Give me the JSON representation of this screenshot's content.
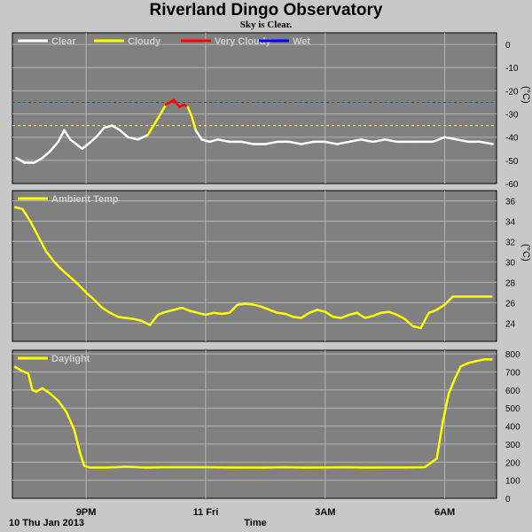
{
  "header": {
    "title": "Riverland Dingo Observatory",
    "subtitle": "Sky is Clear."
  },
  "footer": {
    "date_label": "10 Thu Jan 2013",
    "x_axis_label": "Time"
  },
  "x_ticks": [
    {
      "label": "9PM",
      "hour": 21
    },
    {
      "label": "11 Fri",
      "hour": 24
    },
    {
      "label": "3AM",
      "hour": 27
    },
    {
      "label": "6AM",
      "hour": 30
    }
  ],
  "chart_data": [
    {
      "type": "line",
      "name": "sky-panel",
      "xlabel": "Time",
      "ylabel": "(°C)",
      "xlim": [
        19.15,
        31.3
      ],
      "ylim": [
        -60,
        5
      ],
      "yticks": [
        0,
        -10,
        -20,
        -30,
        -40,
        -50,
        -60
      ],
      "grid": true,
      "legend": "top-left",
      "thresholds": [
        {
          "value": -25,
          "color": "#ff0000"
        },
        {
          "value": -35,
          "color": "#ffff00"
        }
      ],
      "series": [
        {
          "name": "Clear",
          "color": "#ffffff"
        },
        {
          "name": "Cloudy",
          "color": "#ffff00"
        },
        {
          "name": "Very Cloudy",
          "color": "#ff0000"
        },
        {
          "name": "Wet",
          "color": "#0000ff"
        }
      ],
      "x": [
        19.25,
        19.45,
        19.7,
        19.9,
        20.1,
        20.3,
        20.45,
        20.6,
        20.75,
        20.9,
        21.05,
        21.25,
        21.45,
        21.65,
        21.85,
        22.05,
        22.3,
        22.55,
        22.8,
        23.0,
        23.2,
        23.35,
        23.45,
        23.55,
        23.65,
        23.75,
        23.9,
        24.1,
        24.3,
        24.6,
        24.9,
        25.2,
        25.5,
        25.8,
        26.1,
        26.4,
        26.7,
        27.0,
        27.3,
        27.6,
        27.9,
        28.2,
        28.5,
        28.8,
        29.1,
        29.4,
        29.7,
        30.0,
        30.3,
        30.6,
        30.9,
        31.2
      ],
      "values": [
        -49,
        -51,
        -51,
        -49,
        -46,
        -42,
        -37,
        -41,
        -43,
        -45,
        -43,
        -40,
        -36,
        -35,
        -37,
        -40,
        -41,
        -39,
        -32,
        -26,
        -24,
        -27,
        -26,
        -27,
        -31,
        -37,
        -41,
        -42,
        -41,
        -42,
        -42,
        -43,
        -43,
        -42,
        -42,
        -43,
        -42,
        -42,
        -43,
        -42,
        -41,
        -42,
        -41,
        -42,
        -42,
        -42,
        -42,
        -40,
        -41,
        -42,
        -42,
        -43
      ],
      "conditions": [
        "clear",
        "clear",
        "clear",
        "clear",
        "clear",
        "clear",
        "clear",
        "clear",
        "clear",
        "clear",
        "clear",
        "clear",
        "clear",
        "clear",
        "clear",
        "clear",
        "clear",
        "clear",
        "cloudy",
        "cloudy",
        "very-cloudy",
        "very-cloudy",
        "very-cloudy",
        "very-cloudy",
        "cloudy",
        "cloudy",
        "clear",
        "clear",
        "clear",
        "clear",
        "clear",
        "clear",
        "clear",
        "clear",
        "clear",
        "clear",
        "clear",
        "clear",
        "clear",
        "clear",
        "clear",
        "clear",
        "clear",
        "clear",
        "clear",
        "clear",
        "clear",
        "clear",
        "clear",
        "clear",
        "clear",
        "clear"
      ]
    },
    {
      "type": "line",
      "name": "ambient-panel",
      "xlabel": "Time",
      "ylabel": "(°C)",
      "xlim": [
        19.15,
        31.3
      ],
      "ylim": [
        22.2,
        37
      ],
      "yticks": [
        24,
        26,
        28,
        30,
        32,
        34,
        36
      ],
      "grid": true,
      "legend": "top-left",
      "series": [
        {
          "name": "Ambient Temp",
          "color": "#ffff00",
          "x": [
            19.2,
            19.4,
            19.6,
            19.8,
            20.0,
            20.2,
            20.4,
            20.6,
            20.8,
            21.0,
            21.2,
            21.4,
            21.6,
            21.8,
            22.0,
            22.2,
            22.4,
            22.6,
            22.8,
            23.0,
            23.2,
            23.4,
            23.6,
            23.8,
            24.0,
            24.2,
            24.4,
            24.6,
            24.8,
            25.0,
            25.2,
            25.4,
            25.6,
            25.8,
            26.0,
            26.2,
            26.4,
            26.6,
            26.8,
            27.0,
            27.2,
            27.4,
            27.6,
            27.8,
            28.0,
            28.2,
            28.4,
            28.6,
            28.8,
            29.0,
            29.2,
            29.4,
            29.6,
            29.8,
            30.0,
            30.2,
            30.4,
            30.6,
            30.8,
            31.0,
            31.2
          ],
          "values": [
            35.4,
            35.2,
            34.0,
            32.5,
            31.0,
            30.0,
            29.2,
            28.5,
            27.8,
            27.0,
            26.3,
            25.5,
            25.0,
            24.6,
            24.5,
            24.4,
            24.2,
            23.8,
            24.8,
            25.1,
            25.3,
            25.5,
            25.2,
            25.0,
            24.8,
            25.0,
            24.9,
            25.0,
            25.8,
            25.9,
            25.8,
            25.6,
            25.3,
            25.0,
            24.9,
            24.6,
            24.5,
            25.0,
            25.3,
            25.1,
            24.6,
            24.5,
            24.8,
            25.0,
            24.5,
            24.7,
            25.0,
            25.1,
            24.8,
            24.4,
            23.7,
            23.5,
            25.0,
            25.3,
            25.8,
            26.6,
            26.6,
            26.6,
            26.6,
            26.6,
            26.6
          ]
        }
      ]
    },
    {
      "type": "line",
      "name": "daylight-panel",
      "xlabel": "Time",
      "ylabel": "",
      "xlim": [
        19.15,
        31.3
      ],
      "ylim": [
        0,
        820
      ],
      "yticks": [
        0,
        100,
        200,
        300,
        400,
        500,
        600,
        700,
        800
      ],
      "grid": true,
      "legend": "top-left",
      "series": [
        {
          "name": "Daylight",
          "color": "#ffff00",
          "x": [
            19.2,
            19.35,
            19.55,
            19.65,
            19.75,
            19.9,
            20.1,
            20.3,
            20.5,
            20.7,
            20.85,
            20.95,
            21.1,
            21.5,
            22.0,
            22.5,
            23.0,
            23.5,
            24.0,
            24.5,
            25.0,
            25.5,
            26.0,
            26.5,
            27.0,
            27.5,
            28.0,
            28.5,
            29.0,
            29.5,
            29.8,
            29.95,
            30.1,
            30.25,
            30.4,
            30.6,
            30.8,
            31.0,
            31.2
          ],
          "values": [
            730,
            710,
            690,
            600,
            590,
            610,
            580,
            540,
            480,
            380,
            250,
            180,
            170,
            170,
            175,
            170,
            172,
            172,
            172,
            171,
            170,
            170,
            172,
            170,
            171,
            172,
            170,
            171,
            171,
            172,
            220,
            420,
            580,
            660,
            730,
            750,
            760,
            770,
            770
          ]
        }
      ]
    }
  ]
}
